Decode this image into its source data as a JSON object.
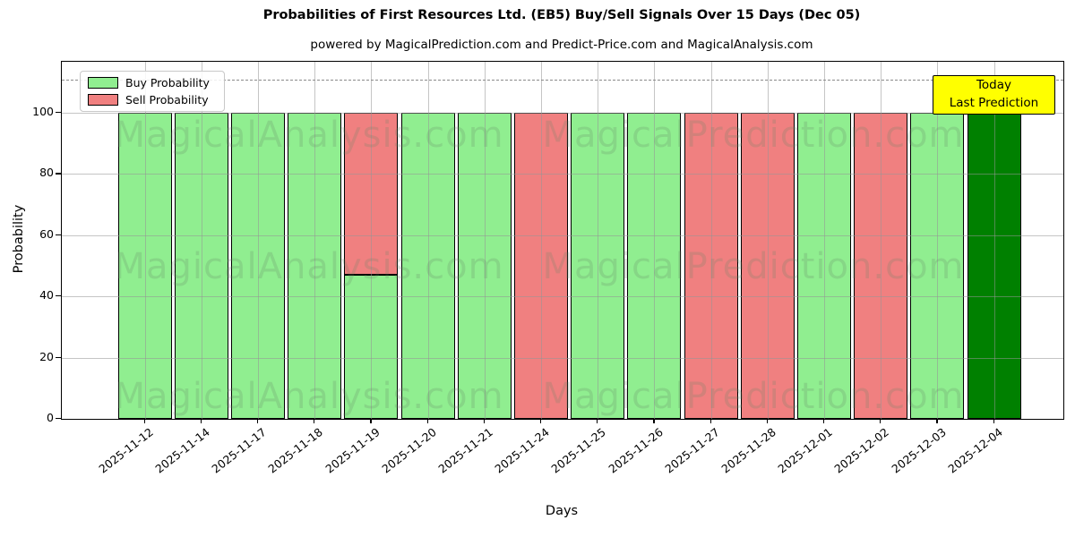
{
  "chart": {
    "title": "Probabilities of First Resources Ltd. (EB5) Buy/Sell Signals Over 15 Days (Dec 05)",
    "subtitle": "powered by MagicalPrediction.com and Predict-Price.com and MagicalAnalysis.com",
    "xlabel": "Days",
    "ylabel": "Probability",
    "annotation": {
      "line1": "Today",
      "line2": "Last Prediction",
      "bg_color": "#FFFF00"
    },
    "watermarks": [
      "MagicalAnalysis.com",
      "MagicalPrediction.com"
    ]
  },
  "chart_data": {
    "type": "bar",
    "stacked": true,
    "categories": [
      "2025-11-12",
      "2025-11-14",
      "2025-11-17",
      "2025-11-18",
      "2025-11-19",
      "2025-11-20",
      "2025-11-21",
      "2025-11-24",
      "2025-11-25",
      "2025-11-26",
      "2025-11-27",
      "2025-11-28",
      "2025-12-01",
      "2025-12-02",
      "2025-12-03",
      "2025-12-04"
    ],
    "series": [
      {
        "name": "Buy Probability",
        "color": "#90EE90",
        "values": [
          100,
          100,
          100,
          100,
          47,
          100,
          100,
          0,
          100,
          100,
          0,
          0,
          100,
          0,
          100,
          100
        ]
      },
      {
        "name": "Sell Probability",
        "color": "#F08080",
        "values": [
          0,
          0,
          0,
          0,
          53,
          0,
          0,
          100,
          0,
          0,
          100,
          100,
          0,
          100,
          0,
          0
        ]
      }
    ],
    "today": {
      "index": 15,
      "color": "#008000",
      "label": "Today / Last Prediction"
    },
    "title": "Probabilities of First Resources Ltd. (EB5) Buy/Sell Signals Over 15 Days (Dec 05)",
    "xlabel": "Days",
    "ylabel": "Probability",
    "yticks": [
      0,
      20,
      40,
      60,
      80,
      100
    ],
    "ylim": [
      0,
      116.7
    ],
    "dashed_line_y": 110.8,
    "grid": true,
    "legend_position": "upper left"
  }
}
